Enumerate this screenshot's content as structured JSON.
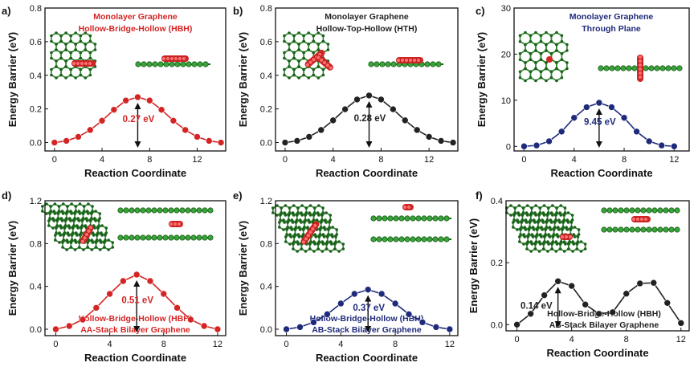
{
  "colors": {
    "red": "#d42424",
    "black": "#222222",
    "blue": "#1e2a7a",
    "green": "#2d8a2d",
    "darkgreen": "#1c5e1c"
  },
  "chart_data": [
    {
      "type": "line",
      "panel_label": "a)",
      "title_lines": [
        "Monolayer Graphene",
        "Hollow-Bridge-Hollow (HBH)"
      ],
      "title_color": "red",
      "xlabel": "Reaction Coordinate",
      "ylabel": "Energy Barrier (eV)",
      "x": [
        0,
        1,
        2,
        3,
        4,
        5,
        6,
        7,
        8,
        9,
        10,
        11,
        12,
        13,
        14
      ],
      "y": [
        0.0,
        0.01,
        0.034,
        0.075,
        0.13,
        0.195,
        0.25,
        0.27,
        0.25,
        0.195,
        0.13,
        0.075,
        0.034,
        0.01,
        0.0
      ],
      "xlim": [
        -0.8,
        14.4
      ],
      "ylim": [
        -0.05,
        0.8
      ],
      "xticks": [
        0,
        4,
        8,
        12
      ],
      "yticks": [
        0.0,
        0.2,
        0.4,
        0.6,
        0.8
      ],
      "ytick_decimals": 1,
      "series_color": "red",
      "barrier_label": "0.27 eV",
      "barrier_label_color": "red"
    },
    {
      "type": "line",
      "panel_label": "b)",
      "title_lines": [
        "Monolayer Graphene",
        "Hollow-Top-Hollow (HTH)"
      ],
      "title_color": "black",
      "xlabel": "Reaction Coordinate",
      "ylabel": "Energy Barrier (eV)",
      "x": [
        0,
        1,
        2,
        3,
        4,
        5,
        6,
        7,
        8,
        9,
        10,
        11,
        12,
        13,
        14
      ],
      "y": [
        0.0,
        0.01,
        0.034,
        0.075,
        0.132,
        0.198,
        0.256,
        0.28,
        0.256,
        0.198,
        0.132,
        0.075,
        0.034,
        0.01,
        0.0
      ],
      "xlim": [
        -0.8,
        14.4
      ],
      "ylim": [
        -0.05,
        0.8
      ],
      "xticks": [
        0,
        4,
        8,
        12
      ],
      "yticks": [
        0.0,
        0.2,
        0.4,
        0.6,
        0.8
      ],
      "ytick_decimals": 1,
      "series_color": "black",
      "barrier_label": "0.28 eV",
      "barrier_label_color": "black"
    },
    {
      "type": "line",
      "panel_label": "c)",
      "title_lines": [
        "Monolayer Graphene",
        "Through Plane"
      ],
      "title_color": "blue",
      "xlabel": "Reaction Coordinate",
      "ylabel": "Energy Barrier (eV)",
      "x": [
        0,
        1,
        2,
        3,
        4,
        5,
        6,
        7,
        8,
        9,
        10,
        11,
        12
      ],
      "y": [
        0.0,
        0.2,
        1.1,
        3.2,
        6.2,
        8.5,
        9.45,
        8.5,
        6.2,
        3.2,
        1.1,
        0.2,
        0.0
      ],
      "xlim": [
        -0.8,
        13.2
      ],
      "ylim": [
        -1,
        30
      ],
      "xticks": [
        0,
        4,
        8,
        12
      ],
      "yticks": [
        0,
        10,
        20,
        30
      ],
      "ytick_decimals": 0,
      "series_color": "blue",
      "barrier_label": "9.45 eV",
      "barrier_label_color": "blue"
    },
    {
      "type": "line",
      "panel_label": "d)",
      "caption_lines": [
        "Hollow-Bridge-Hollow (HBH)",
        "AA-Stack Bilayer Graphene"
      ],
      "title_color": "red",
      "xlabel": "Reaction Coordinate",
      "ylabel": "Energy Barrier (eV)",
      "x": [
        0,
        1,
        2,
        3,
        4,
        5,
        6,
        7,
        8,
        9,
        10,
        11,
        12
      ],
      "y": [
        0.0,
        0.03,
        0.09,
        0.2,
        0.33,
        0.45,
        0.51,
        0.45,
        0.33,
        0.2,
        0.09,
        0.03,
        0.0
      ],
      "xlim": [
        -0.8,
        12.6
      ],
      "ylim": [
        -0.06,
        1.2
      ],
      "xticks": [
        0,
        4,
        8,
        12
      ],
      "yticks": [
        0.0,
        0.4,
        0.8,
        1.2
      ],
      "ytick_decimals": 1,
      "series_color": "red",
      "barrier_label": "0.51 eV",
      "barrier_label_color": "red"
    },
    {
      "type": "line",
      "panel_label": "e)",
      "caption_lines": [
        "Hollow-Bridge-Hollow (HBH)",
        "AB-Stack Bilayer Graphene"
      ],
      "title_color": "blue",
      "xlabel": "Reaction Coordinate",
      "ylabel": "Energy Barrier (eV)",
      "x": [
        0,
        1,
        2,
        3,
        4,
        5,
        6,
        7,
        8,
        9,
        10,
        11,
        12
      ],
      "y": [
        0.0,
        0.02,
        0.065,
        0.14,
        0.24,
        0.33,
        0.37,
        0.33,
        0.24,
        0.14,
        0.065,
        0.02,
        0.0
      ],
      "xlim": [
        -0.8,
        12.6
      ],
      "ylim": [
        -0.06,
        1.2
      ],
      "xticks": [
        0,
        4,
        8,
        12
      ],
      "yticks": [
        0.0,
        0.4,
        0.8,
        1.2
      ],
      "ytick_decimals": 1,
      "series_color": "blue",
      "barrier_label": "0.37 eV",
      "barrier_label_color": "blue"
    },
    {
      "type": "line",
      "panel_label": "f)",
      "caption_lines": [
        "Hollow-Bridge-Hollow (HBH)",
        "AB-Stack Bilayer Graphene"
      ],
      "title_color": "black",
      "xlabel": "Reaction Coordinate",
      "ylabel": "Energy Barrier (eV)",
      "x": [
        0,
        1,
        2,
        3,
        4,
        5,
        6,
        7,
        8,
        9,
        10,
        11,
        12
      ],
      "y": [
        0.0,
        0.035,
        0.095,
        0.14,
        0.125,
        0.065,
        0.035,
        0.04,
        0.1,
        0.133,
        0.135,
        0.07,
        0.005
      ],
      "xlim": [
        -0.8,
        12.6
      ],
      "ylim": [
        -0.02,
        0.4
      ],
      "xticks": [
        0,
        4,
        8,
        12
      ],
      "yticks": [
        0.0,
        0.2,
        0.4
      ],
      "ytick_decimals": 1,
      "series_color": "black",
      "barrier_label": "0.14 eV",
      "barrier_label_color": "black"
    }
  ]
}
